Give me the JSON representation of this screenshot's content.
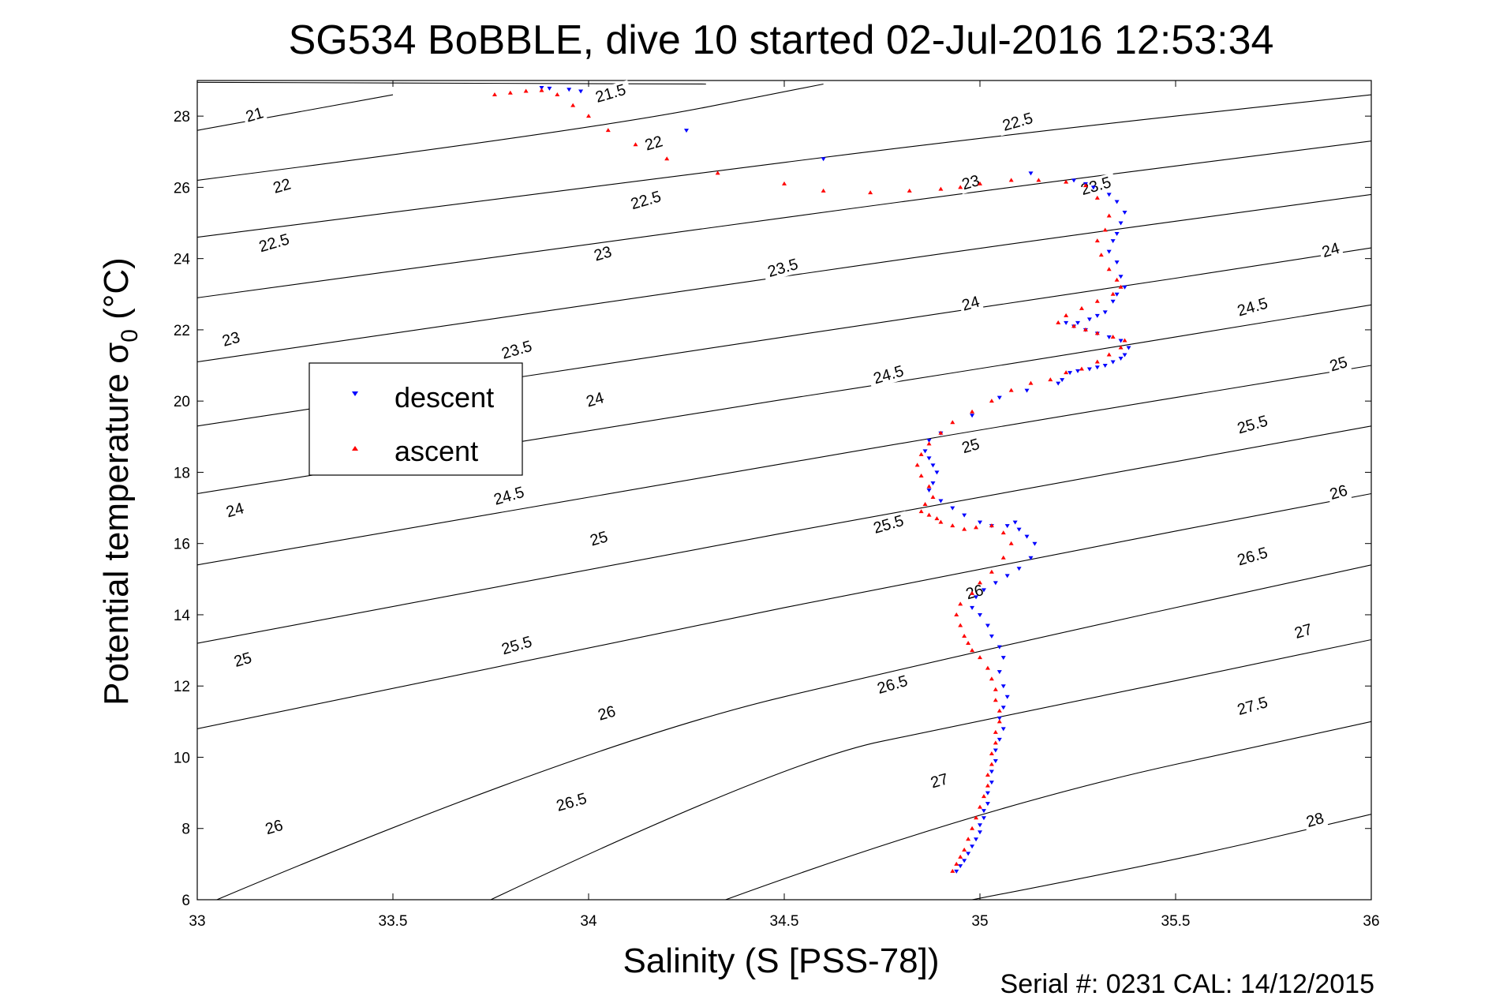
{
  "chart_data": {
    "type": "scatter",
    "title": "SG534 BoBBLE, dive 10 started 02-Jul-2016 12:53:34",
    "xlabel": "Salinity (S [PSS-78])",
    "ylabel_main": "Potential temperature σ",
    "ylabel_sub": "0",
    "ylabel_unit": " (°C)",
    "footer": "Serial #: 0231  CAL: 14/12/2015",
    "xlim": [
      33,
      36
    ],
    "ylim": [
      6,
      29
    ],
    "xticks": [
      33,
      33.5,
      34,
      34.5,
      35,
      35.5,
      36
    ],
    "xtick_labels": [
      "33",
      "33.5",
      "34",
      "34.5",
      "35",
      "35.5",
      "36"
    ],
    "yticks": [
      6,
      8,
      10,
      12,
      14,
      16,
      18,
      20,
      22,
      24,
      26,
      28
    ],
    "ytick_labels": [
      "6",
      "8",
      "10",
      "12",
      "14",
      "16",
      "18",
      "20",
      "22",
      "24",
      "26",
      "28"
    ],
    "legend": {
      "placement": "upper-left",
      "entries": [
        "descent",
        "ascent"
      ]
    },
    "colors": {
      "descent": "#0000ff",
      "ascent": "#ff0000",
      "contour": "#000000"
    },
    "contours": [
      {
        "label": "21",
        "points": [
          [
            33.0,
            27.6
          ],
          [
            33.5,
            28.6
          ]
        ],
        "label_at": [
          33.15,
          27.9
        ]
      },
      {
        "label": "21.5",
        "points": [
          [
            33.0,
            28.95
          ],
          [
            34.3,
            28.9
          ]
        ],
        "label_at": [
          34.06,
          28.5
        ]
      },
      {
        "label": "22",
        "points": [
          [
            33.0,
            26.2
          ],
          [
            34.0,
            27.6
          ],
          [
            34.6,
            28.9
          ]
        ],
        "label_at": [
          34.17,
          27.1
        ]
      },
      {
        "label": "22.5",
        "points": [
          [
            33.0,
            24.6
          ],
          [
            34.0,
            26.0
          ],
          [
            35.0,
            27.4
          ],
          [
            36.0,
            28.6
          ]
        ],
        "label_at": [
          34.16,
          25.5
        ]
      },
      {
        "label": "23",
        "points": [
          [
            33.0,
            22.9
          ],
          [
            34.0,
            24.4
          ],
          [
            35.0,
            25.9
          ],
          [
            36.0,
            27.3
          ]
        ],
        "label_at": [
          34.98,
          26.0
        ]
      },
      {
        "label": "23.5",
        "points": [
          [
            33.0,
            21.1
          ],
          [
            34.0,
            22.7
          ],
          [
            35.0,
            24.3
          ],
          [
            36.0,
            25.8
          ]
        ],
        "label_at": [
          35.3,
          25.9
        ]
      },
      {
        "label": "24",
        "points": [
          [
            33.0,
            19.3
          ],
          [
            34.0,
            21.0
          ],
          [
            35.0,
            22.6
          ],
          [
            36.0,
            24.3
          ]
        ],
        "label_at": [
          35.9,
          24.1
        ]
      },
      {
        "label": "24.5",
        "points": [
          [
            33.0,
            17.4
          ],
          [
            34.0,
            19.2
          ],
          [
            35.0,
            20.9
          ],
          [
            36.0,
            22.7
          ]
        ],
        "label_at": [
          35.7,
          22.5
        ]
      },
      {
        "label": "25",
        "points": [
          [
            33.0,
            15.4
          ],
          [
            34.0,
            17.3
          ],
          [
            35.0,
            19.2
          ],
          [
            36.0,
            21.0
          ]
        ],
        "label_at": [
          35.92,
          20.9
        ]
      },
      {
        "label": "25.5",
        "points": [
          [
            33.0,
            13.2
          ],
          [
            34.0,
            15.3
          ],
          [
            35.0,
            17.3
          ],
          [
            36.0,
            19.3
          ]
        ],
        "label_at": [
          35.7,
          19.2
        ]
      },
      {
        "label": "26",
        "points": [
          [
            33.0,
            10.8
          ],
          [
            34.0,
            13.1
          ],
          [
            35.0,
            15.3
          ],
          [
            36.0,
            17.4
          ]
        ],
        "label_at": [
          35.92,
          17.3
        ]
      },
      {
        "label": "26.5",
        "points": [
          [
            33.05,
            6.0
          ],
          [
            34.0,
            10.4
          ],
          [
            35.0,
            13.0
          ],
          [
            36.0,
            15.4
          ]
        ],
        "label_at": [
          35.7,
          15.5
        ]
      },
      {
        "label": "27",
        "points": [
          [
            33.75,
            6.0
          ],
          [
            34.5,
            9.9
          ],
          [
            35.0,
            11.0
          ],
          [
            36.0,
            13.3
          ]
        ],
        "label_at": [
          35.83,
          13.4
        ]
      },
      {
        "label": "27.5",
        "points": [
          [
            34.35,
            6.0
          ],
          [
            35.0,
            8.6
          ],
          [
            36.0,
            11.0
          ]
        ],
        "label_at": [
          35.7,
          11.3
        ]
      },
      {
        "label": "28",
        "points": [
          [
            34.98,
            6.0
          ],
          [
            35.5,
            7.1
          ],
          [
            36.0,
            8.4
          ]
        ],
        "label_at": [
          35.86,
          8.1
        ]
      }
    ],
    "contour_label_positions": [
      {
        "label": "21",
        "at": [
          33.15,
          27.9
        ]
      },
      {
        "label": "21.5",
        "at": [
          34.06,
          28.5
        ]
      },
      {
        "label": "22",
        "at": [
          34.17,
          27.1
        ]
      },
      {
        "label": "22",
        "at": [
          33.22,
          25.9
        ]
      },
      {
        "label": "22.5",
        "at": [
          35.1,
          27.7
        ]
      },
      {
        "label": "22.5",
        "at": [
          34.15,
          25.5
        ]
      },
      {
        "label": "22.5",
        "at": [
          33.2,
          24.3
        ]
      },
      {
        "label": "23",
        "at": [
          34.98,
          26.0
        ]
      },
      {
        "label": "23",
        "at": [
          34.04,
          24.0
        ]
      },
      {
        "label": "23",
        "at": [
          33.09,
          21.6
        ]
      },
      {
        "label": "23.5",
        "at": [
          35.3,
          25.9
        ]
      },
      {
        "label": "23.5",
        "at": [
          34.5,
          23.6
        ]
      },
      {
        "label": "23.5",
        "at": [
          33.82,
          21.3
        ]
      },
      {
        "label": "24",
        "at": [
          35.9,
          24.1
        ]
      },
      {
        "label": "24",
        "at": [
          34.98,
          22.6
        ]
      },
      {
        "label": "24",
        "at": [
          34.02,
          19.9
        ]
      },
      {
        "label": "24",
        "at": [
          33.1,
          16.8
        ]
      },
      {
        "label": "24.5",
        "at": [
          35.7,
          22.5
        ]
      },
      {
        "label": "24.5",
        "at": [
          34.77,
          20.6
        ]
      },
      {
        "label": "24.5",
        "at": [
          33.8,
          17.2
        ]
      },
      {
        "label": "25",
        "at": [
          35.92,
          20.9
        ]
      },
      {
        "label": "25",
        "at": [
          34.98,
          18.6
        ]
      },
      {
        "label": "25",
        "at": [
          34.03,
          16.0
        ]
      },
      {
        "label": "25",
        "at": [
          33.12,
          12.6
        ]
      },
      {
        "label": "25.5",
        "at": [
          35.7,
          19.2
        ]
      },
      {
        "label": "25.5",
        "at": [
          34.77,
          16.4
        ]
      },
      {
        "label": "25.5",
        "at": [
          33.82,
          13.0
        ]
      },
      {
        "label": "26",
        "at": [
          35.92,
          17.3
        ]
      },
      {
        "label": "26",
        "at": [
          34.99,
          14.5
        ]
      },
      {
        "label": "26",
        "at": [
          34.05,
          11.1
        ]
      },
      {
        "label": "26",
        "at": [
          33.2,
          7.9
        ]
      },
      {
        "label": "26.5",
        "at": [
          35.7,
          15.5
        ]
      },
      {
        "label": "26.5",
        "at": [
          34.78,
          11.9
        ]
      },
      {
        "label": "26.5",
        "at": [
          33.96,
          8.6
        ]
      },
      {
        "label": "27",
        "at": [
          35.83,
          13.4
        ]
      },
      {
        "label": "27",
        "at": [
          34.9,
          9.2
        ]
      },
      {
        "label": "27.5",
        "at": [
          35.7,
          11.3
        ]
      },
      {
        "label": "28",
        "at": [
          35.86,
          8.1
        ]
      }
    ],
    "series": [
      {
        "name": "descent",
        "marker": "triangle-down",
        "x": [
          33.88,
          33.9,
          33.95,
          33.98,
          34.25,
          34.6,
          35.13,
          35.24,
          35.27,
          35.29,
          35.33,
          35.35,
          35.37,
          35.36,
          35.35,
          35.34,
          35.33,
          35.35,
          35.36,
          35.37,
          35.35,
          35.34,
          35.32,
          35.3,
          35.28,
          35.25,
          35.22,
          35.24,
          35.27,
          35.3,
          35.33,
          35.36,
          35.38,
          35.37,
          35.36,
          35.34,
          35.32,
          35.3,
          35.28,
          35.25,
          35.23,
          35.21,
          35.2,
          35.12,
          35.05,
          34.98,
          34.9,
          34.87,
          34.86,
          34.87,
          34.88,
          34.89,
          34.88,
          34.87,
          34.9,
          34.93,
          34.96,
          35.0,
          35.03,
          35.07,
          35.09,
          35.1,
          35.12,
          35.14,
          35.13,
          35.1,
          35.07,
          35.04,
          35.01,
          34.99,
          34.98,
          35.0,
          35.02,
          35.03,
          35.05,
          35.06,
          35.05,
          35.06,
          35.07,
          35.06,
          35.05,
          35.06,
          35.05,
          35.04,
          35.04,
          35.03,
          35.03,
          35.02,
          35.02,
          35.01,
          35.01,
          35.0,
          35.0,
          34.99,
          34.98,
          34.97,
          34.96,
          34.95,
          34.94
        ],
        "y": [
          28.8,
          28.78,
          28.75,
          28.7,
          27.6,
          26.8,
          26.4,
          26.2,
          26.1,
          26.0,
          25.8,
          25.6,
          25.3,
          25.0,
          24.7,
          24.5,
          24.2,
          23.9,
          23.5,
          23.2,
          23.0,
          22.8,
          22.5,
          22.4,
          22.3,
          22.2,
          22.2,
          22.1,
          22.0,
          21.9,
          21.8,
          21.7,
          21.5,
          21.3,
          21.2,
          21.1,
          21.0,
          20.95,
          20.9,
          20.85,
          20.8,
          20.6,
          20.5,
          20.3,
          20.1,
          19.6,
          19.1,
          18.9,
          18.6,
          18.4,
          18.2,
          18.0,
          17.7,
          17.5,
          17.2,
          17.0,
          16.8,
          16.6,
          16.5,
          16.5,
          16.6,
          16.4,
          16.2,
          16.0,
          15.6,
          15.3,
          15.1,
          14.9,
          14.7,
          14.5,
          14.2,
          14.0,
          13.7,
          13.4,
          13.1,
          12.8,
          12.4,
          12.0,
          11.7,
          11.4,
          11.1,
          10.8,
          10.5,
          10.2,
          9.9,
          9.6,
          9.3,
          9.0,
          8.7,
          8.5,
          8.3,
          8.1,
          7.9,
          7.7,
          7.5,
          7.3,
          7.1,
          6.95,
          6.8
        ]
      },
      {
        "name": "ascent",
        "marker": "triangle-up",
        "x": [
          33.76,
          33.8,
          33.84,
          33.88,
          33.92,
          33.96,
          34.0,
          34.05,
          34.12,
          34.2,
          34.33,
          34.5,
          34.6,
          34.72,
          34.82,
          34.9,
          34.95,
          35.0,
          35.08,
          35.15,
          35.22,
          35.27,
          35.3,
          35.33,
          35.32,
          35.3,
          35.31,
          35.33,
          35.35,
          35.36,
          35.34,
          35.3,
          35.26,
          35.22,
          35.2,
          35.24,
          35.27,
          35.3,
          35.34,
          35.37,
          35.36,
          35.33,
          35.3,
          35.26,
          35.22,
          35.18,
          35.13,
          35.08,
          35.03,
          34.98,
          34.93,
          34.9,
          34.87,
          34.85,
          34.84,
          34.85,
          34.87,
          34.88,
          34.86,
          34.85,
          34.87,
          34.89,
          34.9,
          34.93,
          34.96,
          34.99,
          35.03,
          35.06,
          35.08,
          35.06,
          35.03,
          35.0,
          34.98,
          34.95,
          34.94,
          34.95,
          34.96,
          34.97,
          34.98,
          35.0,
          35.02,
          35.03,
          35.04,
          35.04,
          35.05,
          35.05,
          35.04,
          35.04,
          35.03,
          35.03,
          35.02,
          35.02,
          35.01,
          35.0,
          34.99,
          34.98,
          34.97,
          34.96,
          34.95,
          34.94,
          34.93
        ],
        "y": [
          28.6,
          28.65,
          28.7,
          28.72,
          28.6,
          28.3,
          28.0,
          27.6,
          27.2,
          26.8,
          26.4,
          26.1,
          25.9,
          25.85,
          25.9,
          25.95,
          26.0,
          26.1,
          26.2,
          26.2,
          26.15,
          26.05,
          25.7,
          25.2,
          24.8,
          24.5,
          24.1,
          23.7,
          23.4,
          23.2,
          23.0,
          22.8,
          22.6,
          22.4,
          22.2,
          22.1,
          22.0,
          21.9,
          21.8,
          21.7,
          21.5,
          21.3,
          21.1,
          20.9,
          20.8,
          20.6,
          20.5,
          20.3,
          20.0,
          19.7,
          19.4,
          19.1,
          18.8,
          18.5,
          18.2,
          17.9,
          17.6,
          17.3,
          17.1,
          16.9,
          16.8,
          16.7,
          16.6,
          16.5,
          16.4,
          16.45,
          16.5,
          16.3,
          16.0,
          15.6,
          15.2,
          14.9,
          14.6,
          14.3,
          14.0,
          13.7,
          13.4,
          13.2,
          13.0,
          12.8,
          12.5,
          12.2,
          11.9,
          11.6,
          11.3,
          11.0,
          10.7,
          10.4,
          10.1,
          9.8,
          9.5,
          9.2,
          8.9,
          8.6,
          8.3,
          8.0,
          7.7,
          7.4,
          7.2,
          7.0,
          6.8
        ]
      }
    ]
  }
}
